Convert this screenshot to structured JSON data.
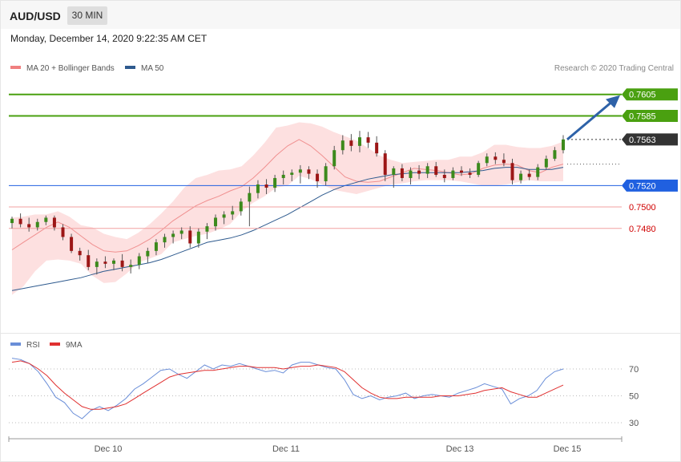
{
  "header": {
    "symbol": "AUD/USD",
    "timeframe": "30 MIN",
    "datetime": "Monday, December 14, 2020 9:22:35 AM CET"
  },
  "legend": {
    "ma20": "MA 20 + Bollinger Bands",
    "ma50": "MA 50",
    "credit": "Research © 2020 Trading Central",
    "colors": {
      "ma20": "#f08080",
      "ma50": "#2e5a8e"
    }
  },
  "rsi_legend": {
    "rsi": "RSI",
    "ma9": "9MA",
    "colors": {
      "rsi": "#6a8ed8",
      "ma9": "#e03030"
    }
  },
  "chart_data": [
    {
      "type": "candlestick",
      "title": "AUD/USD",
      "timeframe": "30 MIN",
      "x_ticks": [
        "Dec 10",
        "Dec 11",
        "Dec 13",
        "Dec 15"
      ],
      "ylim": [
        0.7405,
        0.7625
      ],
      "last_price": 0.7563,
      "levels": [
        {
          "value": 0.7605,
          "label": "0.7605",
          "kind": "resistance",
          "color": "#4aa010"
        },
        {
          "value": 0.7585,
          "label": "0.7585",
          "kind": "resistance",
          "color": "#4aa010"
        },
        {
          "value": 0.7563,
          "label": "0.7563",
          "kind": "last",
          "color": "#333333"
        },
        {
          "value": 0.752,
          "label": "0.7520",
          "kind": "pivot",
          "color": "#2060e0"
        },
        {
          "value": 0.75,
          "label": "0.7500",
          "kind": "support",
          "color": "#d00000"
        },
        {
          "value": 0.748,
          "label": "0.7480",
          "kind": "support",
          "color": "#d00000"
        }
      ],
      "projection": {
        "from": 0.7563,
        "to": 0.7605
      },
      "series": [
        {
          "name": "MA 20 + Bollinger Bands",
          "values": [
            0.746,
            0.7467,
            0.7474,
            0.7481,
            0.7486,
            0.7481,
            0.7473,
            0.7465,
            0.7459,
            0.7458,
            0.7459,
            0.7464,
            0.747,
            0.7478,
            0.7487,
            0.7494,
            0.7501,
            0.7506,
            0.751,
            0.7515,
            0.7519,
            0.7527,
            0.7537,
            0.7548,
            0.7557,
            0.7563,
            0.7557,
            0.7548,
            0.7538,
            0.7528,
            0.7524,
            0.7523,
            0.7524,
            0.7528,
            0.7532,
            0.7536,
            0.7535,
            0.7534,
            0.7532,
            0.753,
            0.7531,
            0.7536,
            0.7539,
            0.754,
            0.7539,
            0.7534,
            0.7532,
            0.7537,
            0.754
          ]
        },
        {
          "name": "MA 50",
          "values": [
            0.7422,
            0.7424,
            0.7426,
            0.7428,
            0.743,
            0.7432,
            0.7434,
            0.7437,
            0.744,
            0.7442,
            0.7444,
            0.7446,
            0.7448,
            0.7451,
            0.7455,
            0.7459,
            0.7463,
            0.7467,
            0.7469,
            0.7471,
            0.7474,
            0.7478,
            0.7483,
            0.7488,
            0.7493,
            0.7499,
            0.7505,
            0.7511,
            0.7516,
            0.752,
            0.7523,
            0.7526,
            0.7528,
            0.753,
            0.7531,
            0.7532,
            0.7532,
            0.7532,
            0.7532,
            0.7532,
            0.7533,
            0.7534,
            0.7536,
            0.7537,
            0.7537,
            0.7535,
            0.7535,
            0.7535,
            0.7537
          ]
        },
        {
          "name": "Bollinger upper",
          "values": [
            0.749,
            0.7491,
            0.7493,
            0.7493,
            0.7496,
            0.7491,
            0.7483,
            0.7481,
            0.7475,
            0.7472,
            0.747,
            0.7476,
            0.7484,
            0.7494,
            0.7505,
            0.7518,
            0.7527,
            0.753,
            0.7534,
            0.7535,
            0.7538,
            0.7548,
            0.756,
            0.7574,
            0.7576,
            0.7579,
            0.7578,
            0.7575,
            0.757,
            0.7566,
            0.7562,
            0.7555,
            0.7548,
            0.7544,
            0.7541,
            0.7542,
            0.7543,
            0.7544,
            0.7544,
            0.7547,
            0.7547,
            0.7551,
            0.7558,
            0.7558,
            0.7556,
            0.7555,
            0.7555,
            0.7557,
            0.7561
          ]
        },
        {
          "name": "Bollinger lower",
          "values": [
            0.7418,
            0.7426,
            0.744,
            0.745,
            0.7451,
            0.745,
            0.7447,
            0.7436,
            0.7429,
            0.743,
            0.7438,
            0.7448,
            0.7452,
            0.7456,
            0.7467,
            0.747,
            0.7473,
            0.7475,
            0.7479,
            0.7484,
            0.7496,
            0.7504,
            0.751,
            0.7518,
            0.752,
            0.7529,
            0.7526,
            0.7521,
            0.7516,
            0.7514,
            0.7512,
            0.7515,
            0.7518,
            0.7521,
            0.7522,
            0.7524,
            0.7525,
            0.7525,
            0.7525,
            0.7524,
            0.7522,
            0.752,
            0.752,
            0.7521,
            0.7523,
            0.7525,
            0.7524,
            0.7524,
            0.7524
          ]
        }
      ],
      "ohlc": [
        [
          0.7485,
          0.7491,
          0.748,
          0.7489
        ],
        [
          0.7489,
          0.7494,
          0.7481,
          0.7484
        ],
        [
          0.7484,
          0.749,
          0.7477,
          0.7481
        ],
        [
          0.7481,
          0.7489,
          0.7478,
          0.7486
        ],
        [
          0.7486,
          0.7492,
          0.7483,
          0.749
        ],
        [
          0.749,
          0.7492,
          0.7478,
          0.7481
        ],
        [
          0.7481,
          0.7484,
          0.7469,
          0.7472
        ],
        [
          0.7472,
          0.7475,
          0.7457,
          0.7459
        ],
        [
          0.7459,
          0.7462,
          0.745,
          0.7455
        ],
        [
          0.7455,
          0.746,
          0.7441,
          0.7444
        ],
        [
          0.7444,
          0.7452,
          0.7437,
          0.7449
        ],
        [
          0.7449,
          0.7454,
          0.7443,
          0.7447
        ],
        [
          0.7447,
          0.7452,
          0.7441,
          0.745
        ],
        [
          0.745,
          0.7456,
          0.744,
          0.7444
        ],
        [
          0.7444,
          0.7451,
          0.7438,
          0.7446
        ],
        [
          0.7446,
          0.7457,
          0.7442,
          0.7454
        ],
        [
          0.7454,
          0.7462,
          0.7448,
          0.7459
        ],
        [
          0.7459,
          0.747,
          0.7455,
          0.7467
        ],
        [
          0.7467,
          0.7475,
          0.7462,
          0.7472
        ],
        [
          0.7472,
          0.7478,
          0.7466,
          0.7475
        ],
        [
          0.7475,
          0.7481,
          0.747,
          0.7478
        ],
        [
          0.7478,
          0.7482,
          0.7462,
          0.7466
        ],
        [
          0.7466,
          0.748,
          0.7462,
          0.7477
        ],
        [
          0.7477,
          0.7485,
          0.747,
          0.7482
        ],
        [
          0.7482,
          0.7493,
          0.7478,
          0.749
        ],
        [
          0.749,
          0.7496,
          0.7484,
          0.7493
        ],
        [
          0.7493,
          0.7501,
          0.7488,
          0.7496
        ],
        [
          0.7496,
          0.7508,
          0.7492,
          0.7505
        ],
        [
          0.7505,
          0.7519,
          0.7482,
          0.7513
        ],
        [
          0.7513,
          0.7525,
          0.7508,
          0.7521
        ],
        [
          0.7521,
          0.7526,
          0.7512,
          0.7518
        ],
        [
          0.7518,
          0.753,
          0.7514,
          0.7527
        ],
        [
          0.7527,
          0.7534,
          0.7521,
          0.753
        ],
        [
          0.753,
          0.7535,
          0.7524,
          0.7532
        ],
        [
          0.7532,
          0.7539,
          0.7522,
          0.7535
        ],
        [
          0.7535,
          0.7538,
          0.7526,
          0.7531
        ],
        [
          0.7531,
          0.7535,
          0.7518,
          0.7524
        ],
        [
          0.7524,
          0.7541,
          0.752,
          0.7538
        ],
        [
          0.7538,
          0.7557,
          0.7535,
          0.7553
        ],
        [
          0.7553,
          0.7567,
          0.7549,
          0.7562
        ],
        [
          0.7562,
          0.7568,
          0.7552,
          0.7557
        ],
        [
          0.7557,
          0.7571,
          0.7551,
          0.7565
        ],
        [
          0.7565,
          0.757,
          0.7555,
          0.756
        ],
        [
          0.756,
          0.7566,
          0.7547,
          0.755
        ],
        [
          0.755,
          0.7553,
          0.7524,
          0.753
        ],
        [
          0.753,
          0.7538,
          0.7518,
          0.7536
        ],
        [
          0.7536,
          0.754,
          0.7524,
          0.7527
        ],
        [
          0.7527,
          0.7537,
          0.7521,
          0.7534
        ],
        [
          0.7534,
          0.7539,
          0.7526,
          0.7531
        ],
        [
          0.7531,
          0.7541,
          0.7527,
          0.7538
        ],
        [
          0.7538,
          0.7542,
          0.7528,
          0.753
        ],
        [
          0.753,
          0.7535,
          0.7523,
          0.7527
        ],
        [
          0.7527,
          0.7537,
          0.7525,
          0.7534
        ],
        [
          0.7534,
          0.7538,
          0.7529,
          0.7532
        ],
        [
          0.7532,
          0.7536,
          0.7527,
          0.753
        ],
        [
          0.753,
          0.7543,
          0.7528,
          0.7541
        ],
        [
          0.7541,
          0.755,
          0.7538,
          0.7547
        ],
        [
          0.7547,
          0.7551,
          0.754,
          0.7544
        ],
        [
          0.7544,
          0.755,
          0.7538,
          0.7541
        ],
        [
          0.7541,
          0.7545,
          0.7521,
          0.7525
        ],
        [
          0.7525,
          0.7534,
          0.7522,
          0.7531
        ],
        [
          0.7531,
          0.7535,
          0.7525,
          0.7528
        ],
        [
          0.7528,
          0.754,
          0.7525,
          0.7537
        ],
        [
          0.7537,
          0.7548,
          0.7535,
          0.7545
        ],
        [
          0.7545,
          0.7556,
          0.7543,
          0.7553
        ],
        [
          0.7553,
          0.7567,
          0.755,
          0.7563
        ]
      ]
    },
    {
      "type": "line",
      "title": "RSI",
      "x_ticks": [
        "Dec 10",
        "Dec 11",
        "Dec 13",
        "Dec 15"
      ],
      "y_ticks": [
        30,
        50,
        70
      ],
      "ylim": [
        20,
        80
      ],
      "series": [
        {
          "name": "RSI",
          "values": [
            78,
            77,
            74,
            68,
            59,
            49,
            45,
            37,
            33,
            39,
            42,
            39,
            43,
            48,
            55,
            59,
            64,
            69,
            70,
            66,
            63,
            68,
            73,
            70,
            73,
            72,
            74,
            72,
            70,
            68,
            69,
            67,
            73,
            75,
            75,
            73,
            71,
            70,
            62,
            51,
            48,
            50,
            47,
            49,
            50,
            52,
            48,
            50,
            51,
            50,
            49,
            52,
            54,
            56,
            59,
            57,
            55,
            44,
            48,
            50,
            54,
            63,
            68,
            70
          ]
        },
        {
          "name": "9MA",
          "values": [
            75,
            76,
            74,
            70,
            65,
            58,
            52,
            47,
            42,
            40,
            40,
            41,
            42,
            44,
            48,
            52,
            56,
            60,
            64,
            66,
            67,
            68,
            69,
            69,
            70,
            71,
            72,
            72,
            71,
            71,
            71,
            70,
            71,
            72,
            72,
            73,
            72,
            71,
            68,
            62,
            56,
            52,
            49,
            48,
            48,
            49,
            49,
            49,
            49,
            50,
            50,
            50,
            51,
            52,
            54,
            55,
            56,
            53,
            51,
            49,
            49,
            52,
            55,
            58
          ]
        }
      ]
    }
  ]
}
